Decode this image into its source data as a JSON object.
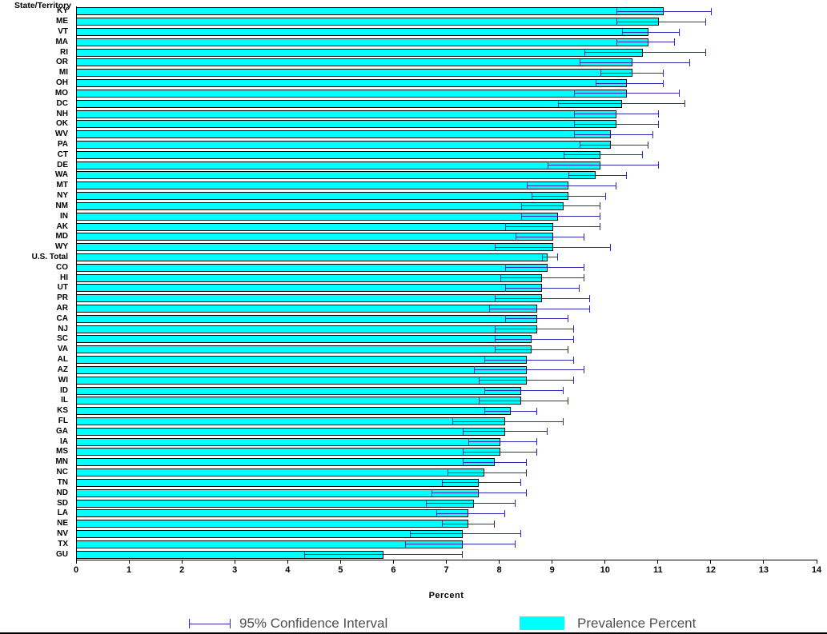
{
  "axis": {
    "ticks": [
      "0",
      "1",
      "2",
      "3",
      "4",
      "5",
      "6",
      "7",
      "8",
      "9",
      "10",
      "11",
      "12",
      "13",
      "14"
    ]
  },
  "legend": {
    "ci_label": "95% Confidence Interval",
    "bar_label": "Prevalence Percent"
  },
  "colors": {
    "bar_fill": "#00ffff",
    "bar_border": "#000000",
    "ci": "#2d2db4"
  },
  "chart_data": {
    "type": "bar",
    "orientation": "horizontal",
    "xlabel": "Percent",
    "ylabel": "State/Territory",
    "xlim": [
      0,
      14
    ],
    "grid": false,
    "legend_position": "bottom",
    "categories": [
      "KY",
      "ME",
      "VT",
      "MA",
      "RI",
      "OR",
      "MI",
      "OH",
      "MO",
      "DC",
      "NH",
      "OK",
      "WV",
      "PA",
      "CT",
      "DE",
      "WA",
      "MT",
      "NY",
      "NM",
      "IN",
      "AK",
      "MD",
      "WY",
      "U.S. Total",
      "CO",
      "HI",
      "UT",
      "PR",
      "AR",
      "CA",
      "NJ",
      "SC",
      "VA",
      "AL",
      "AZ",
      "WI",
      "ID",
      "IL",
      "KS",
      "FL",
      "GA",
      "IA",
      "MS",
      "MN",
      "NC",
      "TN",
      "ND",
      "SD",
      "LA",
      "NE",
      "NV",
      "TX",
      "GU"
    ],
    "values": [
      11.1,
      11.0,
      10.8,
      10.8,
      10.7,
      10.5,
      10.5,
      10.4,
      10.4,
      10.3,
      10.2,
      10.2,
      10.1,
      10.1,
      9.9,
      9.9,
      9.8,
      9.3,
      9.3,
      9.2,
      9.1,
      9.0,
      9.0,
      9.0,
      8.9,
      8.9,
      8.8,
      8.8,
      8.8,
      8.7,
      8.7,
      8.7,
      8.6,
      8.6,
      8.5,
      8.5,
      8.5,
      8.4,
      8.4,
      8.2,
      8.1,
      8.1,
      8.0,
      8.0,
      7.9,
      7.7,
      7.6,
      7.6,
      7.5,
      7.4,
      7.4,
      7.3,
      7.3,
      5.8
    ],
    "ci_low": [
      10.2,
      10.2,
      10.3,
      10.2,
      9.6,
      9.5,
      9.9,
      9.8,
      9.4,
      9.1,
      9.4,
      9.4,
      9.4,
      9.5,
      9.2,
      8.9,
      9.3,
      8.5,
      8.6,
      8.4,
      8.4,
      8.1,
      8.3,
      7.9,
      8.8,
      8.1,
      8.0,
      8.1,
      7.9,
      7.8,
      8.1,
      7.9,
      7.9,
      7.9,
      7.7,
      7.5,
      7.6,
      7.7,
      7.6,
      7.7,
      7.1,
      7.3,
      7.4,
      7.3,
      7.3,
      7.0,
      6.9,
      6.7,
      6.6,
      6.8,
      6.9,
      6.3,
      6.2,
      4.3
    ],
    "ci_high": [
      12.0,
      11.9,
      11.4,
      11.3,
      11.9,
      11.6,
      11.1,
      11.1,
      11.4,
      11.5,
      11.0,
      11.0,
      10.9,
      10.8,
      10.7,
      11.0,
      10.4,
      10.2,
      10.0,
      9.9,
      9.9,
      9.9,
      9.6,
      10.1,
      9.1,
      9.6,
      9.6,
      9.5,
      9.7,
      9.7,
      9.3,
      9.4,
      9.4,
      9.3,
      9.4,
      9.6,
      9.4,
      9.2,
      9.3,
      8.7,
      9.2,
      8.9,
      8.7,
      8.7,
      8.5,
      8.5,
      8.4,
      8.5,
      8.3,
      8.1,
      7.9,
      8.4,
      8.3,
      7.3
    ]
  }
}
